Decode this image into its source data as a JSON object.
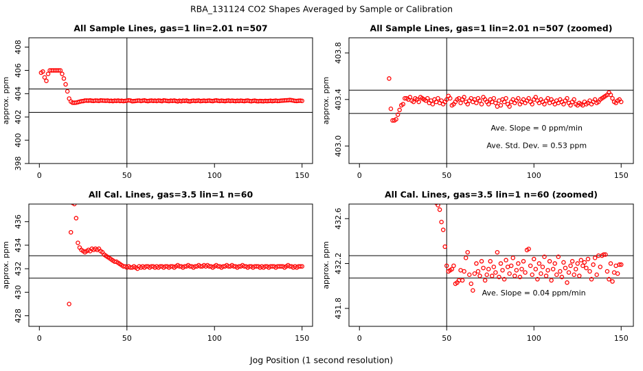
{
  "title": "RBA_131124  CO2 Shapes Averaged by Sample or Calibration",
  "x_label": "Jog Position (1 second resolution)",
  "chart_data": [
    {
      "type": "scatter",
      "title": "All Sample Lines, gas=1 lin=2.01 n=507",
      "y_label": "approx. ppm",
      "xlim": [
        -6,
        156
      ],
      "xticks": [
        0,
        50,
        100,
        150
      ],
      "ylim": [
        398,
        408.8
      ],
      "yticks": [
        398,
        400,
        402,
        404,
        406,
        408
      ],
      "hlines": [
        404.4,
        402.4
      ],
      "vlines": [
        50
      ],
      "color": "#ff0000",
      "x": [
        1,
        2,
        3,
        4,
        5,
        6,
        7,
        8,
        9,
        10,
        11,
        12,
        13,
        14,
        15,
        16,
        17,
        18,
        19,
        20,
        21,
        22,
        23,
        24,
        25,
        26,
        27,
        28,
        29,
        30,
        31,
        32,
        33,
        34,
        35,
        36,
        37,
        38,
        39,
        40,
        41,
        42,
        43,
        44,
        45,
        46,
        47,
        48,
        49,
        50,
        51,
        52,
        53,
        54,
        55,
        56,
        57,
        58,
        59,
        60,
        61,
        62,
        63,
        64,
        65,
        66,
        67,
        68,
        69,
        70,
        71,
        72,
        73,
        74,
        75,
        76,
        77,
        78,
        79,
        80,
        81,
        82,
        83,
        84,
        85,
        86,
        87,
        88,
        89,
        90,
        91,
        92,
        93,
        94,
        95,
        96,
        97,
        98,
        99,
        100,
        101,
        102,
        103,
        104,
        105,
        106,
        107,
        108,
        109,
        110,
        111,
        112,
        113,
        114,
        115,
        116,
        117,
        118,
        119,
        120,
        121,
        122,
        123,
        124,
        125,
        126,
        127,
        128,
        129,
        130,
        131,
        132,
        133,
        134,
        135,
        136,
        137,
        138,
        139,
        140,
        141,
        142,
        143,
        144,
        145,
        146,
        147,
        148,
        149,
        150
      ],
      "values": [
        405.8,
        405.9,
        405.4,
        405.1,
        405.7,
        406,
        406,
        406,
        406,
        406,
        406,
        406,
        405.7,
        405.3,
        404.8,
        404.2,
        403.58,
        403.32,
        403.22,
        403.22,
        403.23,
        403.27,
        403.31,
        403.35,
        403.36,
        403.41,
        403.41,
        403.4,
        403.42,
        403.39,
        403.38,
        403.41,
        403.4,
        403.38,
        403.42,
        403.41,
        403.4,
        403.39,
        403.41,
        403.37,
        403.39,
        403.36,
        403.4,
        403.38,
        403.41,
        403.37,
        403.39,
        403.36,
        403.38,
        403.4,
        403.43,
        403.41,
        403.35,
        403.36,
        403.38,
        403.4,
        403.41,
        403.37,
        403.4,
        403.42,
        403.38,
        403.36,
        403.39,
        403.41,
        403.38,
        403.4,
        403.37,
        403.41,
        403.39,
        403.36,
        403.42,
        403.4,
        403.38,
        403.36,
        403.4,
        403.38,
        403.41,
        403.37,
        403.34,
        403.39,
        403.35,
        403.4,
        403.38,
        403.41,
        403.36,
        403.34,
        403.38,
        403.4,
        403.37,
        403.39,
        403.41,
        403.36,
        403.38,
        403.4,
        403.37,
        403.39,
        403.41,
        403.38,
        403.36,
        403.4,
        403.42,
        403.39,
        403.37,
        403.4,
        403.38,
        403.36,
        403.39,
        403.41,
        403.37,
        403.4,
        403.38,
        403.36,
        403.39,
        403.37,
        403.4,
        403.38,
        403.36,
        403.39,
        403.41,
        403.37,
        403.35,
        403.38,
        403.4,
        403.36,
        403.35,
        403.37,
        403.36,
        403.35,
        403.38,
        403.36,
        403.37,
        403.39,
        403.36,
        403.38,
        403.4,
        403.37,
        403.38,
        403.4,
        403.41,
        403.42,
        403.43,
        403.44,
        403.46,
        403.44,
        403.41,
        403.38,
        403.37,
        403.39,
        403.4,
        403.38
      ]
    },
    {
      "type": "scatter",
      "title": "All Sample Lines, gas=1 lin=2.01 n=507 (zoomed)",
      "y_label": "approx. ppm",
      "xlim": [
        -6,
        157
      ],
      "xticks": [
        0,
        50,
        100,
        150
      ],
      "ylim": [
        402.85,
        403.93
      ],
      "yticks": [
        {
          "value": 403,
          "label": "403.0"
        },
        403.4,
        403.8
      ],
      "hlines": [
        403.48,
        403.28
      ],
      "vlines": [
        50
      ],
      "color": "#ff0000",
      "annotations": [
        "Ave. Slope =  0  ppm/min",
        "Ave. Std. Dev. =  0.53  ppm"
      ],
      "x": [
        17,
        18,
        19,
        20,
        21,
        22,
        23,
        24,
        25,
        26,
        27,
        28,
        29,
        30,
        31,
        32,
        33,
        34,
        35,
        36,
        37,
        38,
        39,
        40,
        41,
        42,
        43,
        44,
        45,
        46,
        47,
        48,
        49,
        50,
        51,
        52,
        53,
        54,
        55,
        56,
        57,
        58,
        59,
        60,
        61,
        62,
        63,
        64,
        65,
        66,
        67,
        68,
        69,
        70,
        71,
        72,
        73,
        74,
        75,
        76,
        77,
        78,
        79,
        80,
        81,
        82,
        83,
        84,
        85,
        86,
        87,
        88,
        89,
        90,
        91,
        92,
        93,
        94,
        95,
        96,
        97,
        98,
        99,
        100,
        101,
        102,
        103,
        104,
        105,
        106,
        107,
        108,
        109,
        110,
        111,
        112,
        113,
        114,
        115,
        116,
        117,
        118,
        119,
        120,
        121,
        122,
        123,
        124,
        125,
        126,
        127,
        128,
        129,
        130,
        131,
        132,
        133,
        134,
        135,
        136,
        137,
        138,
        139,
        140,
        141,
        142,
        143,
        144,
        145,
        146,
        147,
        148,
        149,
        150
      ],
      "values": [
        403.58,
        403.32,
        403.22,
        403.22,
        403.23,
        403.27,
        403.31,
        403.35,
        403.36,
        403.41,
        403.41,
        403.4,
        403.42,
        403.39,
        403.38,
        403.41,
        403.4,
        403.38,
        403.42,
        403.41,
        403.4,
        403.39,
        403.41,
        403.37,
        403.39,
        403.36,
        403.4,
        403.38,
        403.41,
        403.37,
        403.39,
        403.36,
        403.38,
        403.4,
        403.43,
        403.41,
        403.35,
        403.36,
        403.38,
        403.4,
        403.41,
        403.37,
        403.4,
        403.42,
        403.38,
        403.36,
        403.39,
        403.41,
        403.38,
        403.4,
        403.37,
        403.41,
        403.39,
        403.36,
        403.42,
        403.4,
        403.38,
        403.36,
        403.4,
        403.38,
        403.41,
        403.37,
        403.34,
        403.39,
        403.35,
        403.4,
        403.38,
        403.41,
        403.36,
        403.34,
        403.38,
        403.4,
        403.37,
        403.39,
        403.41,
        403.36,
        403.38,
        403.4,
        403.37,
        403.39,
        403.41,
        403.38,
        403.36,
        403.4,
        403.42,
        403.39,
        403.37,
        403.4,
        403.38,
        403.36,
        403.39,
        403.41,
        403.37,
        403.4,
        403.38,
        403.36,
        403.39,
        403.37,
        403.4,
        403.38,
        403.36,
        403.39,
        403.41,
        403.37,
        403.35,
        403.38,
        403.4,
        403.36,
        403.35,
        403.37,
        403.36,
        403.35,
        403.38,
        403.36,
        403.37,
        403.39,
        403.36,
        403.38,
        403.4,
        403.37,
        403.38,
        403.4,
        403.41,
        403.42,
        403.43,
        403.44,
        403.46,
        403.44,
        403.41,
        403.38,
        403.37,
        403.39,
        403.4,
        403.38
      ]
    },
    {
      "type": "scatter",
      "title": "All Cal. Lines, gas=3.5 lin=1 n=60",
      "y_label": "approx. ppm",
      "xlim": [
        -6,
        156
      ],
      "xticks": [
        0,
        50,
        100,
        150
      ],
      "ylim": [
        427.1,
        437.5
      ],
      "yticks": [
        428,
        430,
        432,
        434,
        436
      ],
      "hlines": [
        433.1,
        431.2
      ],
      "vlines": [
        50
      ],
      "color": "#ff0000",
      "x": [
        17,
        18,
        19,
        20,
        21,
        22,
        23,
        24,
        25,
        26,
        27,
        28,
        29,
        30,
        31,
        32,
        33,
        34,
        35,
        36,
        37,
        38,
        39,
        40,
        41,
        42,
        43,
        44,
        45,
        46,
        47,
        48,
        49,
        50,
        51,
        52,
        53,
        54,
        55,
        56,
        57,
        58,
        59,
        60,
        61,
        62,
        63,
        64,
        65,
        66,
        67,
        68,
        69,
        70,
        71,
        72,
        73,
        74,
        75,
        76,
        77,
        78,
        79,
        80,
        81,
        82,
        83,
        84,
        85,
        86,
        87,
        88,
        89,
        90,
        91,
        92,
        93,
        94,
        95,
        96,
        97,
        98,
        99,
        100,
        101,
        102,
        103,
        104,
        105,
        106,
        107,
        108,
        109,
        110,
        111,
        112,
        113,
        114,
        115,
        116,
        117,
        118,
        119,
        120,
        121,
        122,
        123,
        124,
        125,
        126,
        127,
        128,
        129,
        130,
        131,
        132,
        133,
        134,
        135,
        136,
        137,
        138,
        139,
        140,
        141,
        142,
        143,
        144,
        145,
        146,
        147,
        148,
        149,
        150
      ],
      "values": [
        429.0,
        435.1,
        437.6,
        437.5,
        436.3,
        434.2,
        433.8,
        433.6,
        433.5,
        433.4,
        433.5,
        433.6,
        433.5,
        433.7,
        433.6,
        433.7,
        433.6,
        433.7,
        433.5,
        433.4,
        433.2,
        433.1,
        433.0,
        432.9,
        432.8,
        432.7,
        432.6,
        432.6,
        432.5,
        432.4,
        432.3,
        432.2,
        432.2,
        432.1,
        432.2,
        432.1,
        432.1,
        432.2,
        432.1,
        432.0,
        432.2,
        432.1,
        432.2,
        432.1,
        432.2,
        432.2,
        432.1,
        432.2,
        432.2,
        432.1,
        432.2,
        432.1,
        432.2,
        432.2,
        432.1,
        432.2,
        432.2,
        432.1,
        432.2,
        432.2,
        432.1,
        432.2,
        432.3,
        432.2,
        432.2,
        432.1,
        432.2,
        432.2,
        432.3,
        432.2,
        432.2,
        432.1,
        432.2,
        432.2,
        432.3,
        432.2,
        432.2,
        432.3,
        432.2,
        432.3,
        432.2,
        432.2,
        432.1,
        432.2,
        432.3,
        432.2,
        432.2,
        432.1,
        432.2,
        432.2,
        432.3,
        432.2,
        432.2,
        432.3,
        432.2,
        432.2,
        432.1,
        432.2,
        432.2,
        432.3,
        432.2,
        432.2,
        432.1,
        432.2,
        432.2,
        432.1,
        432.2,
        432.2,
        432.2,
        432.1,
        432.2,
        432.1,
        432.2,
        432.2,
        432.1,
        432.2,
        432.2,
        432.2,
        432.1,
        432.2,
        432.2,
        432.2,
        432.2,
        432.1,
        432.2,
        432.3,
        432.2,
        432.2,
        432.1,
        432.2,
        432.1,
        432.2,
        432.2,
        432.2
      ]
    },
    {
      "type": "scatter",
      "title": "All Cal. Lines, gas=3.5 lin=1 n=60 (zoomed)",
      "y_label": "approx. ppm",
      "xlim": [
        -6,
        157
      ],
      "xticks": [
        0,
        50,
        100,
        150
      ],
      "ylim": [
        431.64,
        432.73
      ],
      "yticks": [
        431.8,
        432.2,
        432.6
      ],
      "hlines": [
        432.27,
        432.07
      ],
      "vlines": [
        50
      ],
      "color": "#ff0000",
      "annotations": [
        "Ave. Slope =  0.04  ppm/min"
      ],
      "x": [
        44,
        45,
        46,
        47,
        48,
        49,
        50,
        51,
        52,
        53,
        54,
        55,
        56,
        57,
        58,
        59,
        60,
        61,
        62,
        63,
        64,
        65,
        66,
        67,
        68,
        69,
        70,
        71,
        72,
        73,
        74,
        75,
        76,
        77,
        78,
        79,
        80,
        81,
        82,
        83,
        84,
        85,
        86,
        87,
        88,
        89,
        90,
        91,
        92,
        93,
        94,
        95,
        96,
        97,
        98,
        99,
        100,
        101,
        102,
        103,
        104,
        105,
        106,
        107,
        108,
        109,
        110,
        111,
        112,
        113,
        114,
        115,
        116,
        117,
        118,
        119,
        120,
        121,
        122,
        123,
        124,
        125,
        126,
        127,
        128,
        129,
        130,
        131,
        132,
        133,
        134,
        135,
        136,
        137,
        138,
        139,
        140,
        141,
        142,
        143,
        144,
        145,
        146,
        147,
        148,
        149,
        150
      ],
      "values": [
        432.74,
        432.72,
        432.68,
        432.57,
        432.5,
        432.35,
        432.18,
        432.13,
        432.14,
        432.15,
        432.18,
        432.02,
        432.03,
        432.05,
        432.14,
        432.05,
        432.13,
        432.25,
        432.3,
        432.1,
        432.02,
        431.96,
        432.11,
        432.2,
        432.13,
        432.09,
        432.22,
        432.16,
        432.05,
        432.1,
        432.15,
        432.22,
        432.09,
        432.17,
        432.12,
        432.3,
        432.08,
        432.2,
        432.14,
        432.06,
        432.23,
        432.17,
        432.11,
        432.18,
        432.25,
        432.09,
        432.14,
        432.2,
        432.08,
        432.15,
        432.22,
        432.12,
        432.32,
        432.33,
        432.18,
        432.1,
        432.24,
        432.15,
        432.06,
        432.2,
        432.11,
        432.17,
        432.26,
        432.09,
        432.14,
        432.22,
        432.05,
        432.15,
        432.2,
        432.1,
        432.26,
        432.13,
        432.08,
        432.21,
        432.16,
        432.03,
        432.12,
        432.18,
        432.22,
        432.1,
        432.15,
        432.2,
        432.09,
        432.23,
        432.18,
        432.21,
        432.16,
        432.24,
        432.13,
        432.06,
        432.19,
        432.25,
        432.1,
        432.27,
        432.17,
        432.27,
        432.28,
        432.28,
        432.13,
        432.06,
        432.2,
        432.04,
        432.12,
        432.18,
        432.11,
        432.19,
        432.19
      ]
    }
  ]
}
